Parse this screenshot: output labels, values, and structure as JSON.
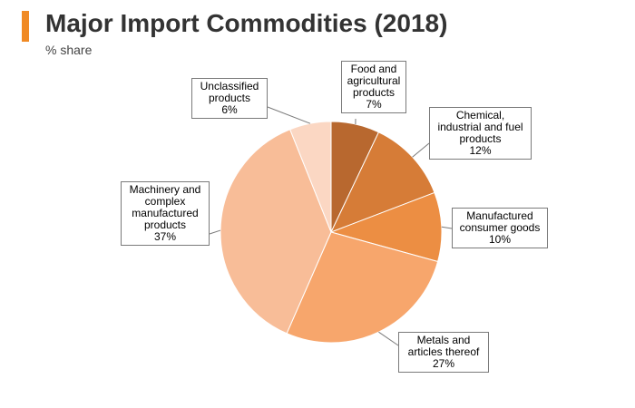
{
  "header": {
    "title": "Major Import Commodities (2018)",
    "subtitle": "% share",
    "accent_color": "#f08a24"
  },
  "chart_data": {
    "type": "pie",
    "title": "Major Import Commodities (2018)",
    "subtitle": "% share",
    "slices": [
      {
        "label": "Food and agricultural products",
        "label_lines": [
          "Food and",
          "agricultural",
          "products"
        ],
        "pct_text": "7%",
        "value": 7,
        "color": "#b8682f"
      },
      {
        "label": "Chemical, industrial and fuel products",
        "label_lines": [
          "Chemical,",
          "industrial and fuel",
          "products"
        ],
        "pct_text": "12%",
        "value": 12,
        "color": "#d67c37"
      },
      {
        "label": "Manufactured consumer goods",
        "label_lines": [
          "Manufactured",
          "consumer goods"
        ],
        "pct_text": "10%",
        "value": 10,
        "color": "#ec8e43"
      },
      {
        "label": "Metals and articles thereof",
        "label_lines": [
          "Metals and",
          "articles thereof"
        ],
        "pct_text": "27%",
        "value": 27,
        "color": "#f7a66c"
      },
      {
        "label": "Machinery and complex manufactured products",
        "label_lines": [
          "Machinery and",
          "complex",
          "manufactured",
          "products"
        ],
        "pct_text": "37%",
        "value": 37,
        "color": "#f8bd98"
      },
      {
        "label": "Unclassified products",
        "label_lines": [
          "Unclassified",
          "products"
        ],
        "pct_text": "6%",
        "value": 6,
        "color": "#fbd7c3"
      }
    ]
  }
}
